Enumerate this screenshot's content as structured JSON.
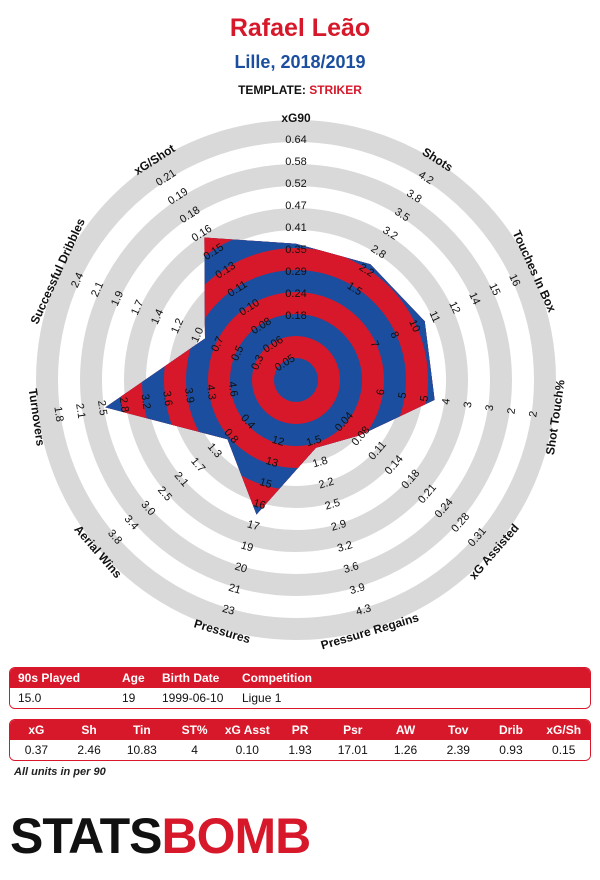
{
  "header": {
    "player": "Rafael Leão",
    "team_season": "Lille, 2018/2019",
    "template_label": "TEMPLATE:",
    "template_value": "STRIKER"
  },
  "colors": {
    "red": "#d7182a",
    "blue": "#1b4e9e",
    "ring": "#d9d9d9"
  },
  "chart_data": {
    "type": "radar",
    "axes": [
      {
        "label": "xG90",
        "ticks": [
          "0.18",
          "0.24",
          "0.29",
          "0.35",
          "0.41",
          "0.47",
          "0.52",
          "0.58",
          "0.64"
        ],
        "value": 0.37,
        "min": 0.12,
        "max": 0.64
      },
      {
        "label": "Shots",
        "ticks": [
          "1.5",
          "2.2",
          "2.8",
          "3.2",
          "3.5",
          "3.8",
          "4.2"
        ],
        "value": 2.46,
        "min": 0.8,
        "max": 4.2
      },
      {
        "label": "Touches In Box",
        "ticks": [
          "7",
          "8",
          "10",
          "11",
          "12",
          "14",
          "15",
          "16"
        ],
        "value": 10.83,
        "min": 5.5,
        "max": 16
      },
      {
        "label": "Shot Touch%",
        "ticks": [
          "5",
          "5",
          "4",
          "3",
          "3",
          "2",
          "2"
        ],
        "value": 4,
        "min": 6,
        "max": 2
      },
      {
        "label": "xG Assisted",
        "ticks": [
          "0.08",
          "0.11",
          "0.14",
          "0.18",
          "0.21",
          "0.24",
          "0.28",
          "0.31"
        ],
        "value": 0.1,
        "min": 0.04,
        "max": 0.31
      },
      {
        "label": "Pressure Regains",
        "ticks": [
          "1.8",
          "2.2",
          "2.5",
          "2.9",
          "3.2",
          "3.6",
          "3.9",
          "4.3"
        ],
        "value": 1.93,
        "min": 1.5,
        "max": 4.3
      },
      {
        "label": "Pressures",
        "ticks": [
          "12",
          "13",
          "15",
          "16",
          "17",
          "19",
          "20",
          "21",
          "23"
        ],
        "value": 17.01,
        "min": 11,
        "max": 23
      },
      {
        "label": "Aerial Wins",
        "ticks": [
          "0.8",
          "1.3",
          "1.7",
          "2.1",
          "2.5",
          "3.0",
          "3.4",
          "3.8"
        ],
        "value": 1.26,
        "min": 0.4,
        "max": 3.8
      },
      {
        "label": "Turnovers",
        "ticks": [
          "3.6",
          "3.2",
          "2.8",
          "2.5",
          "2.1",
          "1.8"
        ],
        "value": 2.39,
        "min": 4.3,
        "max": 1.8
      },
      {
        "label": "Successful Dribbles",
        "ticks": [
          "0.7",
          "1.0",
          "1.2",
          "1.4",
          "1.7",
          "1.9",
          "2.1",
          "2.4"
        ],
        "value": 0.93,
        "min": 0.3,
        "max": 2.4
      },
      {
        "label": "xG/Shot",
        "ticks": [
          "0.05",
          "0.06",
          "0.08",
          "0.10",
          "0.11",
          "0.13",
          "0.15",
          "0.16",
          "0.18",
          "0.19",
          "0.21"
        ],
        "value": 0.15,
        "min": 0.04,
        "max": 0.21
      }
    ],
    "inner_ticks": [
      {
        "axis": 3,
        "labels": [
          "6"
        ]
      },
      {
        "axis": 4,
        "labels": [
          "0.04"
        ]
      },
      {
        "axis": 5,
        "labels": [
          "1.5"
        ]
      },
      {
        "axis": 7,
        "labels": [
          "0.4"
        ]
      },
      {
        "axis": 8,
        "labels": [
          "4.6",
          "4.3",
          "3.9"
        ]
      },
      {
        "axis": 9,
        "labels": [
          "0.3",
          "0.5"
        ]
      }
    ],
    "legend": "none"
  },
  "info_table": {
    "headers": [
      "90s Played",
      "Age",
      "Birth Date",
      "Competition"
    ],
    "values": [
      "15.0",
      "19",
      "1999-06-10",
      "Ligue 1"
    ]
  },
  "stats_table": {
    "headers": [
      "xG",
      "Sh",
      "Tin",
      "ST%",
      "xG Asst",
      "PR",
      "Psr",
      "AW",
      "Tov",
      "Drib",
      "xG/Sh"
    ],
    "values": [
      "0.37",
      "2.46",
      "10.83",
      "4",
      "0.10",
      "1.93",
      "17.01",
      "1.26",
      "2.39",
      "0.93",
      "0.15"
    ]
  },
  "footnote": "All units in per 90",
  "logo": {
    "part1": "STATS",
    "part2": "BOMB"
  }
}
